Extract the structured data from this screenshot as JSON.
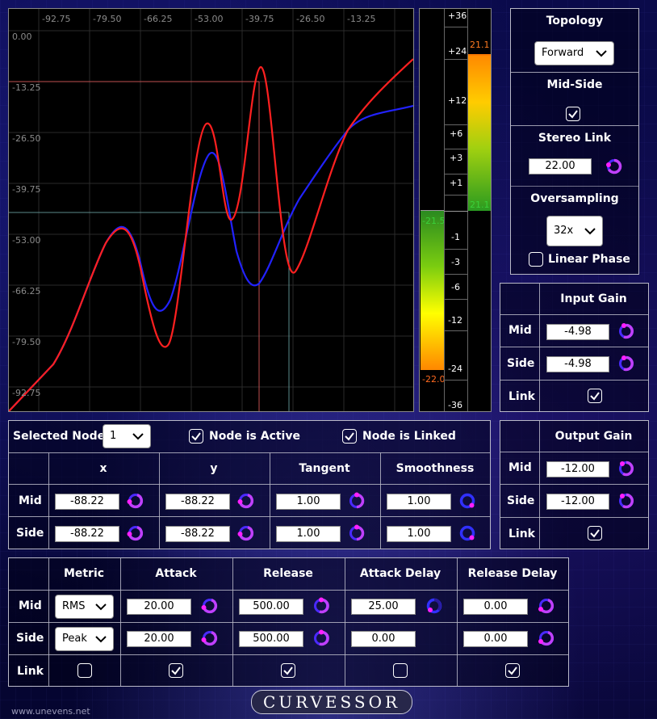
{
  "graph": {
    "x_ticks": [
      "-92.75",
      "-79.50",
      "-66.25",
      "-53.00",
      "-39.75",
      "-26.50",
      "-13.25"
    ],
    "y_ticks": [
      "0.00",
      "-13.25",
      "-26.50",
      "-39.75",
      "-53.00",
      "-66.25",
      "-79.50",
      "-92.75"
    ],
    "mid_curve_color": "#ff2020",
    "side_curve_color": "#2222ff"
  },
  "meter": {
    "scale": [
      "+36",
      "+24",
      "+12",
      "+6",
      "+3",
      "+1",
      "-1",
      "-3",
      "-6",
      "-12",
      "-24",
      "-36"
    ],
    "left_top_label": "-21.5",
    "left_bottom_label": "-22.0",
    "right_top_label": "21.1",
    "right_bottom_label": "21.1"
  },
  "side_panel": {
    "topology_label": "Topology",
    "topology_value": "Forward",
    "midside_label": "Mid-Side",
    "stereo_link_label": "Stereo Link",
    "stereo_link_value": "22.00",
    "oversampling_label": "Oversampling",
    "oversampling_value": "32x",
    "linear_phase_label": "Linear Phase"
  },
  "input_gain": {
    "title": "Input Gain",
    "mid_label": "Mid",
    "mid_value": "-4.98",
    "side_label": "Side",
    "side_value": "-4.98",
    "link_label": "Link"
  },
  "output_gain": {
    "title": "Output Gain",
    "mid_label": "Mid",
    "mid_value": "-12.00",
    "side_label": "Side",
    "side_value": "-12.00",
    "link_label": "Link"
  },
  "node": {
    "selected_label": "Selected Node",
    "selected_value": "1",
    "active_label": "Node is Active",
    "linked_label": "Node is Linked",
    "col_x": "x",
    "col_y": "y",
    "col_tangent": "Tangent",
    "col_smoothness": "Smoothness",
    "mid_label": "Mid",
    "side_label": "Side",
    "mid": {
      "x": "-88.22",
      "y": "-88.22",
      "tangent": "1.00",
      "smoothness": "1.00"
    },
    "side": {
      "x": "-88.22",
      "y": "-88.22",
      "tangent": "1.00",
      "smoothness": "1.00"
    }
  },
  "dynamics": {
    "col_metric": "Metric",
    "col_attack": "Attack",
    "col_release": "Release",
    "col_attack_delay": "Attack Delay",
    "col_release_delay": "Release Delay",
    "mid_label": "Mid",
    "side_label": "Side",
    "link_label": "Link",
    "mid": {
      "metric": "RMS",
      "attack": "20.00",
      "release": "500.00",
      "attack_delay": "25.00",
      "release_delay": "0.00"
    },
    "side": {
      "metric": "Peak",
      "attack": "20.00",
      "release": "500.00",
      "attack_delay": "0.00",
      "release_delay": "0.00"
    }
  },
  "footer": {
    "logo": "CURVESSOR",
    "website": "www.unevens.net"
  }
}
